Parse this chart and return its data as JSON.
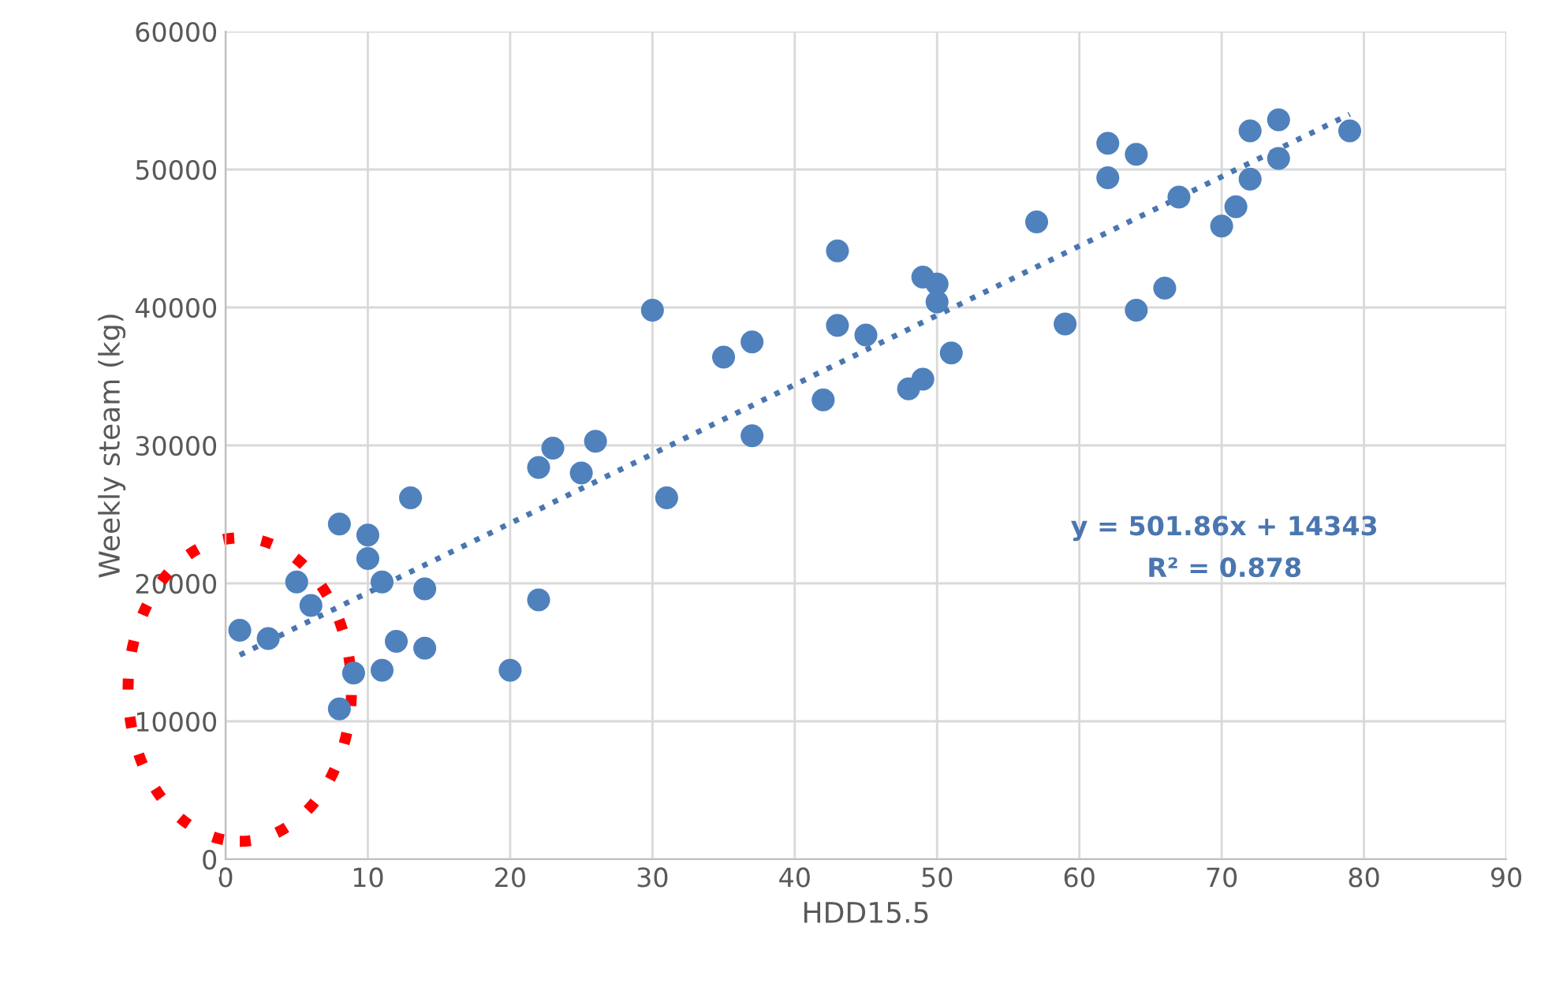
{
  "chart_data": {
    "type": "scatter",
    "xlabel": "HDD15.5",
    "ylabel": "Weekly steam (kg)",
    "xlim": [
      0,
      90
    ],
    "xticks": [
      0,
      10,
      20,
      30,
      40,
      50,
      60,
      70,
      80,
      90
    ],
    "ylim": [
      0,
      60000
    ],
    "yticks": [
      0,
      10000,
      20000,
      30000,
      40000,
      50000,
      60000
    ],
    "grid": true,
    "legend": false,
    "annotations": [
      "y = 501.86x + 14343",
      "R² = 0.878"
    ],
    "series": [
      {
        "color": "#4f81bd",
        "marker": "circle",
        "x": [
          1,
          3,
          5,
          6,
          8,
          8,
          9,
          10,
          10,
          11,
          11,
          12,
          13,
          14,
          14,
          20,
          22,
          22,
          23,
          25,
          26,
          30,
          31,
          35,
          37,
          37,
          42,
          43,
          43,
          45,
          48,
          49,
          49,
          50,
          50,
          51,
          57,
          59,
          62,
          62,
          64,
          64,
          66,
          67,
          70,
          71,
          72,
          72,
          74,
          74,
          79
        ],
        "values": [
          16600,
          16000,
          20100,
          18400,
          24300,
          10900,
          13500,
          23500,
          21800,
          20100,
          13700,
          15800,
          26200,
          19600,
          15300,
          13700,
          28400,
          18800,
          29800,
          28000,
          30300,
          39800,
          26200,
          36400,
          37500,
          30700,
          33300,
          44100,
          38700,
          38000,
          34100,
          34800,
          42200,
          41700,
          40400,
          36700,
          46200,
          38800,
          51900,
          49400,
          51100,
          39800,
          41400,
          48000,
          45900,
          47300,
          52800,
          49300,
          53600,
          50800,
          52800
        ]
      },
      {
        "type": "line",
        "color": "#4a76b0",
        "line_style": "dotted",
        "marker": "none",
        "x": [
          1,
          79
        ],
        "values": [
          14800,
          54000
        ]
      }
    ]
  }
}
